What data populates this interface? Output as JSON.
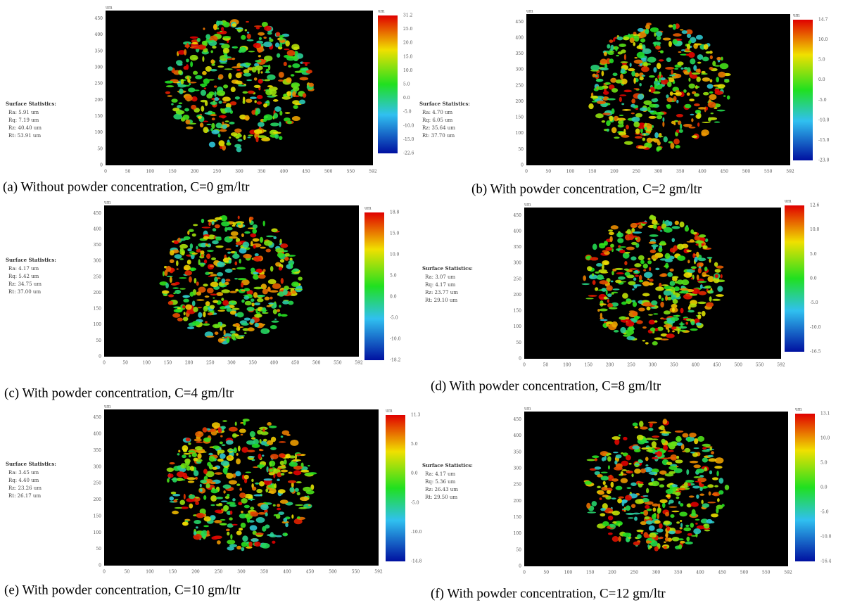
{
  "panels": [
    {
      "caption": "(a) Without powder concentration, C=0 gm/ltr",
      "stats_title": "Surface Statistics:",
      "stats": [
        "Ra: 5.91 um",
        "Rq: 7.19 um",
        "Rz: 40.40 um",
        "Rt: 53.91 um"
      ],
      "y_ticks": [
        "0",
        "50",
        "100",
        "150",
        "200",
        "250",
        "300",
        "350",
        "400",
        "450"
      ],
      "x_ticks": [
        "0",
        "50",
        "100",
        "150",
        "200",
        "250",
        "300",
        "350",
        "400",
        "450",
        "500",
        "550",
        "592"
      ],
      "unit": "um",
      "colorbar_ticks": [
        "31.2",
        "25.0",
        "20.0",
        "15.0",
        "10.0",
        "5.0",
        "0.0",
        "-5.0",
        "-10.0",
        "-15.0",
        "-22.6"
      ]
    },
    {
      "caption": "(b) With powder concentration, C=2 gm/ltr",
      "stats_title": "Surface Statistics:",
      "stats": [
        "Ra: 4.70 um",
        "Rq: 6.05 um",
        "Rz: 35.64 um",
        "Rt: 37.70 um"
      ],
      "y_ticks": [
        "0",
        "50",
        "100",
        "150",
        "200",
        "250",
        "300",
        "350",
        "400",
        "450"
      ],
      "x_ticks": [
        "0",
        "50",
        "100",
        "150",
        "200",
        "250",
        "300",
        "350",
        "400",
        "450",
        "500",
        "550",
        "592"
      ],
      "unit": "um",
      "colorbar_ticks": [
        "14.7",
        "10.0",
        "5.0",
        "0.0",
        "-5.0",
        "-10.0",
        "-15.0",
        "-23.0"
      ]
    },
    {
      "caption": "(c) With powder concentration, C=4 gm/ltr",
      "stats_title": "Surface Statistics:",
      "stats": [
        "Ra: 4.17 um",
        "Rq: 5.42 um",
        "Rz: 34.75 um",
        "Rt: 37.00 um"
      ],
      "y_ticks": [
        "0",
        "50",
        "100",
        "150",
        "200",
        "250",
        "300",
        "350",
        "400",
        "450"
      ],
      "x_ticks": [
        "0",
        "50",
        "100",
        "150",
        "200",
        "250",
        "300",
        "350",
        "400",
        "450",
        "500",
        "550",
        "592"
      ],
      "unit": "um",
      "colorbar_ticks": [
        "18.8",
        "15.0",
        "10.0",
        "5.0",
        "0.0",
        "-5.0",
        "-10.0",
        "-18.2"
      ]
    },
    {
      "caption": "(d) With powder concentration, C=8 gm/ltr",
      "stats_title": "Surface Statistics:",
      "stats": [
        "Ra: 3.07 um",
        "Rq: 4.17 um",
        "Rz: 23.77 um",
        "Rt: 29.10 um"
      ],
      "y_ticks": [
        "0",
        "50",
        "100",
        "150",
        "200",
        "250",
        "300",
        "350",
        "400",
        "450"
      ],
      "x_ticks": [
        "0",
        "50",
        "100",
        "150",
        "200",
        "250",
        "300",
        "350",
        "400",
        "450",
        "500",
        "550",
        "592"
      ],
      "unit": "um",
      "colorbar_ticks": [
        "12.6",
        "10.0",
        "5.0",
        "0.0",
        "-5.0",
        "-10.0",
        "-16.5"
      ]
    },
    {
      "caption": "(e) With powder concentration, C=10 gm/ltr",
      "stats_title": "Surface Statistics:",
      "stats": [
        "Ra: 3.45 um",
        "Rq: 4.40 um",
        "Rz: 23.26 um",
        "Rt: 26.17 um"
      ],
      "y_ticks": [
        "0",
        "50",
        "100",
        "150",
        "200",
        "250",
        "300",
        "350",
        "400",
        "450"
      ],
      "x_ticks": [
        "0",
        "50",
        "100",
        "150",
        "200",
        "250",
        "300",
        "350",
        "400",
        "450",
        "500",
        "550",
        "592"
      ],
      "unit": "um",
      "colorbar_ticks": [
        "11.3",
        "5.0",
        "0.0",
        "-5.0",
        "-10.0",
        "-14.8"
      ]
    },
    {
      "caption": "(f) With powder concentration, C=12 gm/ltr",
      "stats_title": "Surface Statistics:",
      "stats": [
        "Ra: 4.17 um",
        "Rq: 5.36 um",
        "Rz: 26.43 um",
        "Rt: 29.50 um"
      ],
      "y_ticks": [
        "0",
        "50",
        "100",
        "150",
        "200",
        "250",
        "300",
        "350",
        "400",
        "450"
      ],
      "x_ticks": [
        "0",
        "50",
        "100",
        "150",
        "200",
        "250",
        "300",
        "350",
        "400",
        "450",
        "500",
        "550",
        "592"
      ],
      "unit": "um",
      "colorbar_ticks": [
        "13.1",
        "10.0",
        "5.0",
        "0.0",
        "-5.0",
        "-10.0",
        "-16.4"
      ]
    }
  ]
}
